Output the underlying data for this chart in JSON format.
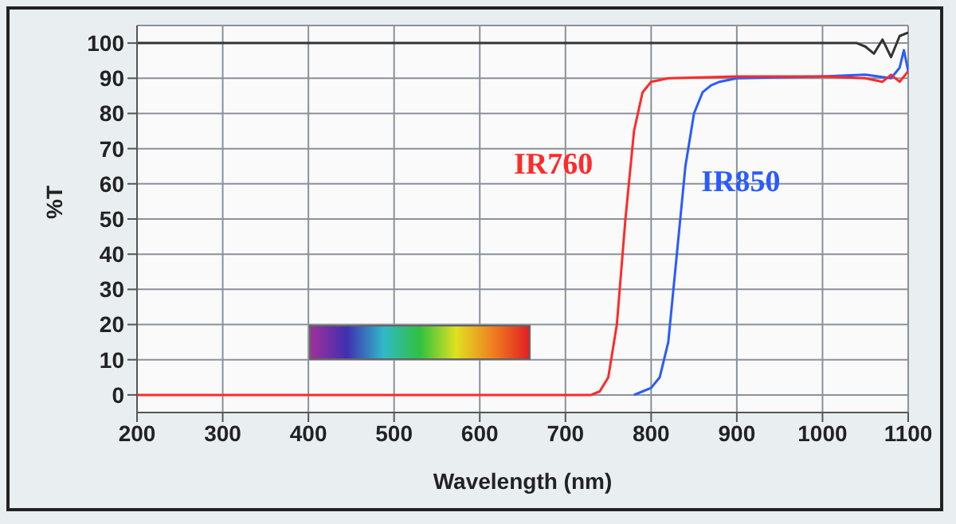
{
  "chart_data": {
    "type": "line",
    "xlabel": "Wavelength (nm)",
    "ylabel": "%T",
    "xlim": [
      200,
      1100
    ],
    "ylim": [
      -5,
      105
    ],
    "xticks": [
      200,
      300,
      400,
      500,
      600,
      700,
      800,
      900,
      1000,
      1100
    ],
    "yticks": [
      0,
      10,
      20,
      30,
      40,
      50,
      60,
      70,
      80,
      90,
      100
    ],
    "grid": true,
    "legend": false,
    "marker": "none",
    "series": [
      {
        "color": "#333333",
        "x": [
          200,
          300,
          400,
          500,
          600,
          700,
          800,
          900,
          1000,
          1040,
          1050,
          1060,
          1070,
          1080,
          1090,
          1100
        ],
        "values": [
          100,
          100,
          100,
          100,
          100,
          100,
          100,
          100,
          100,
          100,
          99,
          97,
          101,
          96,
          102,
          103
        ]
      },
      {
        "name": "IR850",
        "color": "#2a5bff",
        "x": [
          780,
          790,
          800,
          810,
          820,
          830,
          840,
          850,
          860,
          870,
          880,
          900,
          1000,
          1050,
          1080,
          1090,
          1095,
          1100
        ],
        "values": [
          0,
          1,
          2,
          5,
          15,
          40,
          65,
          80,
          86,
          88,
          89,
          90,
          90.5,
          91,
          90,
          93,
          98,
          92
        ]
      },
      {
        "name": "IR760",
        "color": "#ff2a2a",
        "x": [
          200,
          400,
          600,
          730,
          740,
          750,
          760,
          770,
          780,
          790,
          800,
          820,
          900,
          1000,
          1050,
          1070,
          1080,
          1090,
          1100
        ],
        "values": [
          0,
          0,
          0,
          0,
          1,
          5,
          20,
          50,
          75,
          86,
          89,
          90,
          90.5,
          90.5,
          90,
          89,
          91,
          89,
          92
        ]
      }
    ]
  }
}
